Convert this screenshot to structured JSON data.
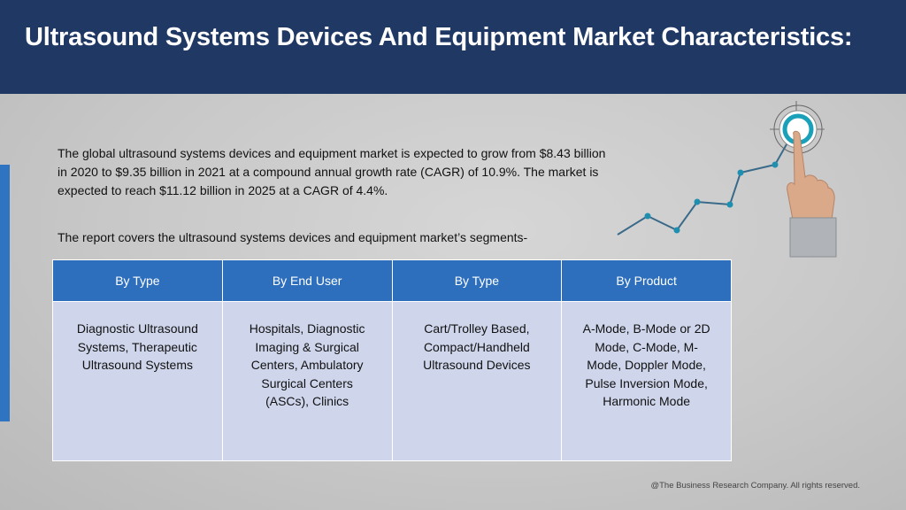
{
  "header": {
    "title": "Ultrasound Systems Devices And Equipment Market Characteristics:"
  },
  "body": {
    "paragraph1": "The global ultrasound systems devices and equipment market is expected to grow from $8.43 billion in 2020 to $9.35 billion in 2021 at a compound annual growth rate (CAGR) of 10.9%. The market is expected to reach $11.12 billion in 2025 at a CAGR of 4.4%.",
    "paragraph2": "The report covers the ultrasound systems devices and equipment market’s segments-"
  },
  "segments": {
    "headers": [
      "By Type",
      "By End User",
      "By Type",
      "By Product"
    ],
    "cells": [
      "Diagnostic Ultrasound Systems, Therapeutic Ultrasound Systems",
      "Hospitals, Diagnostic Imaging & Surgical Centers, Ambulatory Surgical Centers (ASCs), Clinics",
      "Cart/Trolley Based, Compact/Handheld Ultrasound Devices",
      "A-Mode, B-Mode or 2D Mode, C-Mode, M-Mode, Doppler Mode, Pulse Inversion Mode, Harmonic Mode"
    ]
  },
  "footer": {
    "copyright": "@The Business Research Company. All rights reserved."
  },
  "graphic": {
    "icon": "target-growth-hand-icon",
    "line_color": "#3a6a8a",
    "target_color": "#1aa0b8"
  }
}
